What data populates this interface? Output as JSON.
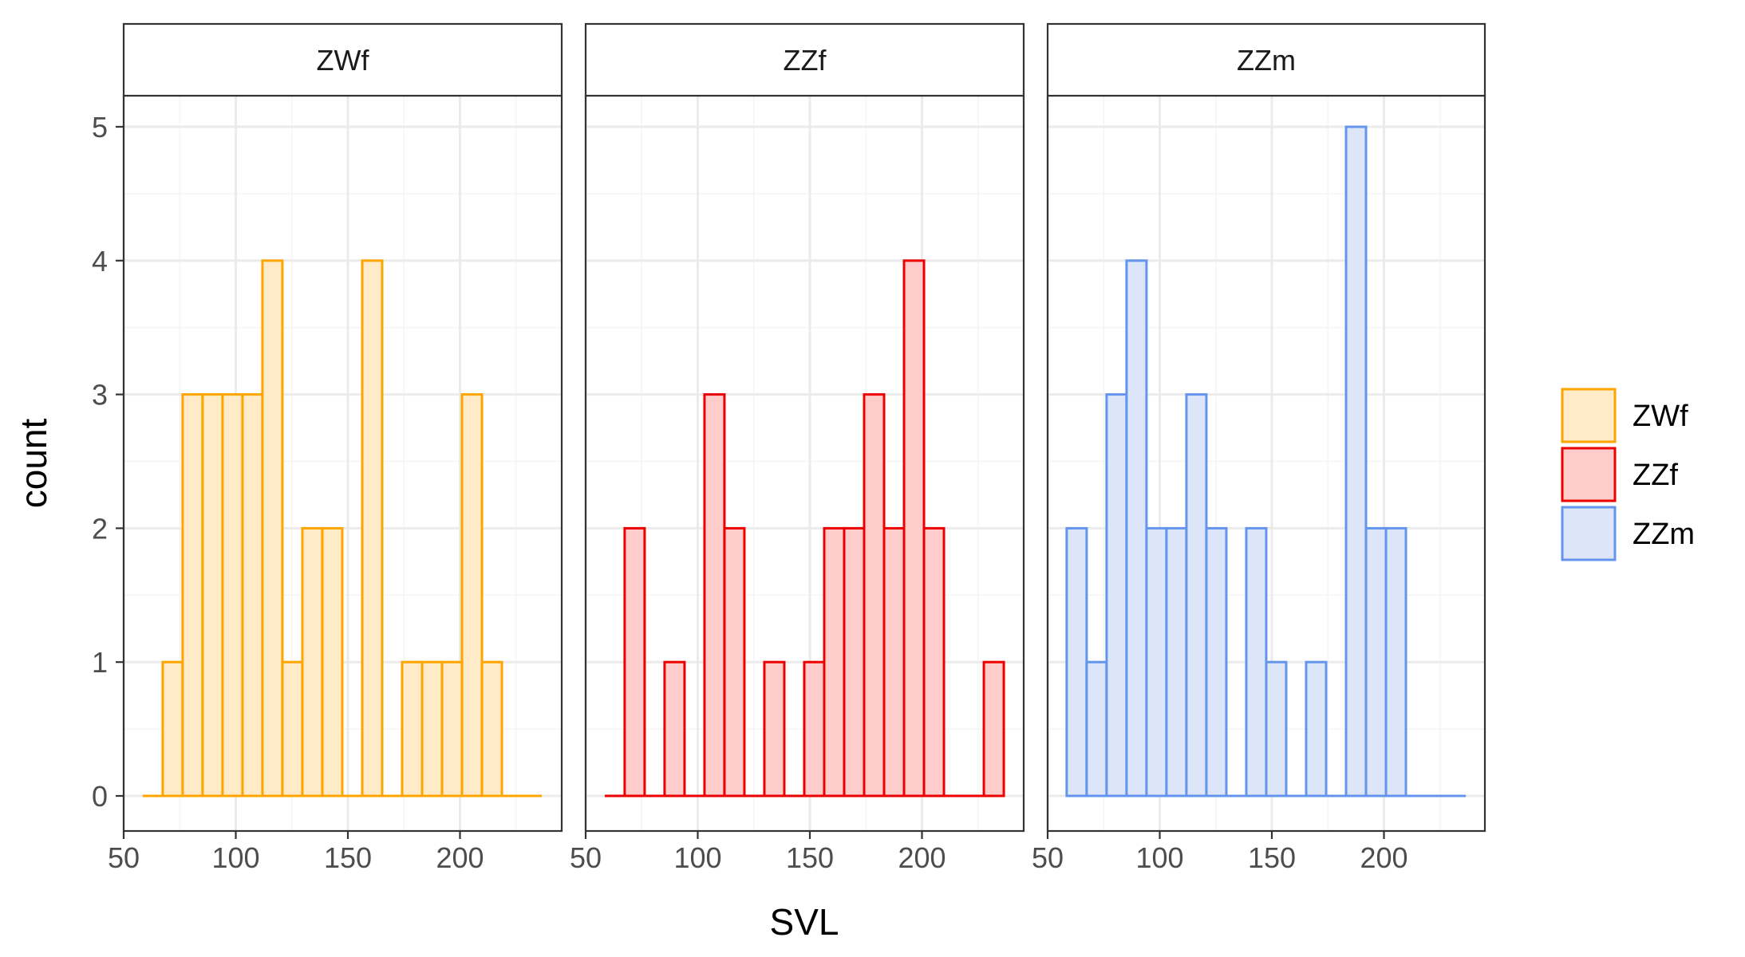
{
  "chart_data": {
    "type": "bar",
    "subtype": "faceted-histogram",
    "xlabel": "SVL",
    "ylabel": "count",
    "xlim": [
      50,
      235
    ],
    "ylim": [
      0,
      5
    ],
    "x_ticks": [
      50,
      100,
      150,
      200
    ],
    "y_ticks": [
      0,
      1,
      2,
      3,
      4,
      5
    ],
    "bin_width": 8.9,
    "bin_start": 58.5,
    "bin_count": 20,
    "grid": true,
    "legend_position": "right",
    "series": [
      {
        "name": "ZWf",
        "stroke": "#FFA500",
        "fill": "#FFEBC8",
        "values": [
          0,
          1,
          3,
          3,
          3,
          3,
          4,
          1,
          2,
          2,
          0,
          4,
          0,
          1,
          1,
          1,
          3,
          1,
          0,
          0
        ]
      },
      {
        "name": "ZZf",
        "stroke": "#EE0000",
        "fill": "#FFCCCC",
        "values": [
          0,
          2,
          0,
          1,
          0,
          3,
          2,
          0,
          1,
          0,
          1,
          2,
          2,
          3,
          2,
          4,
          2,
          0,
          0,
          1
        ]
      },
      {
        "name": "ZZm",
        "stroke": "#6495ED",
        "fill": "#DCE6F8",
        "values": [
          2,
          1,
          3,
          4,
          2,
          2,
          3,
          2,
          0,
          2,
          1,
          0,
          1,
          0,
          5,
          2,
          2,
          0,
          0,
          0
        ]
      }
    ]
  }
}
